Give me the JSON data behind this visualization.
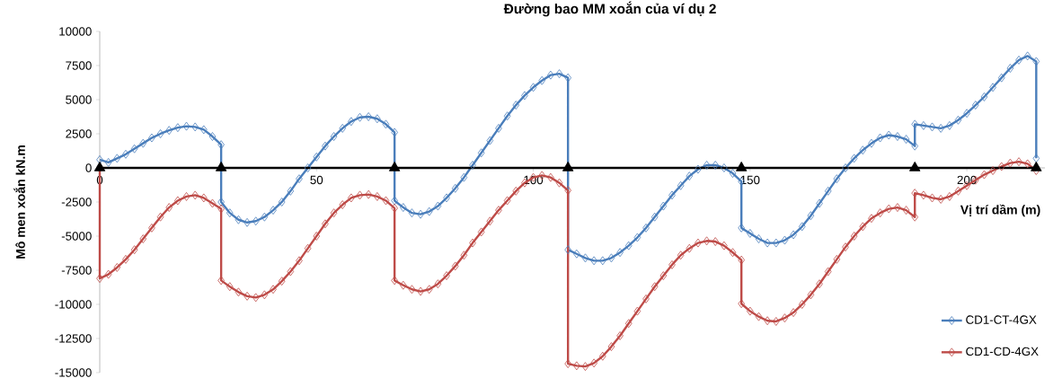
{
  "chart_data": {
    "type": "line",
    "title": "Đường bao MM xoắn của ví dụ 2",
    "xlabel": "Vị trí dầm (m)",
    "ylabel": "Mô men xoắn kN.m",
    "xlim": [
      0,
      218
    ],
    "xticks": [
      0,
      50,
      100,
      150,
      200
    ],
    "ylim": [
      -15000,
      10000
    ],
    "yticks": [
      -15000,
      -12500,
      -10000,
      -7500,
      -5000,
      -2500,
      0,
      2500,
      5000,
      7500,
      10000
    ],
    "legend": "bottom right",
    "line_style": "solid",
    "series": [
      {
        "name": "CD1-CT-4GX",
        "color": "#4a7ebb",
        "marker": "diamond",
        "x": [
          0,
          2,
          4,
          6,
          8,
          10,
          12,
          14,
          16,
          18,
          20,
          22,
          24,
          26,
          28,
          28,
          30,
          32,
          34,
          36,
          38,
          40,
          42,
          44,
          46,
          48,
          50,
          52,
          54,
          56,
          58,
          60,
          62,
          64,
          66,
          68,
          68,
          70,
          72,
          74,
          76,
          78,
          80,
          82,
          84,
          86,
          88,
          90,
          92,
          94,
          96,
          98,
          100,
          102,
          104,
          106,
          108,
          108,
          110,
          112,
          114,
          116,
          118,
          120,
          122,
          124,
          126,
          128,
          130,
          132,
          134,
          136,
          138,
          140,
          142,
          144,
          146,
          148,
          148,
          150,
          152,
          154,
          156,
          158,
          160,
          162,
          164,
          166,
          168,
          170,
          172,
          174,
          176,
          178,
          180,
          182,
          184,
          186,
          188,
          188,
          190,
          192,
          194,
          196,
          198,
          200,
          202,
          204,
          206,
          208,
          210,
          212,
          214,
          216,
          216
        ],
        "values": [
          600,
          400,
          700,
          1000,
          1400,
          1800,
          2200,
          2500,
          2750,
          2950,
          3050,
          3000,
          2800,
          2300,
          1700,
          -2500,
          -3300,
          -3800,
          -4000,
          -3900,
          -3600,
          -3100,
          -2500,
          -1700,
          -800,
          0,
          800,
          1600,
          2300,
          2900,
          3400,
          3700,
          3750,
          3600,
          3200,
          2600,
          -2400,
          -2900,
          -3300,
          -3400,
          -3200,
          -2800,
          -2200,
          -1500,
          -700,
          200,
          1100,
          2000,
          2900,
          3800,
          4600,
          5300,
          5900,
          6400,
          6800,
          6900,
          6600,
          -6000,
          -6300,
          -6600,
          -6800,
          -6800,
          -6600,
          -6200,
          -5700,
          -5100,
          -4400,
          -3600,
          -2800,
          -2000,
          -1300,
          -600,
          -100,
          200,
          200,
          0,
          -400,
          -1000,
          -4400,
          -4800,
          -5200,
          -5500,
          -5500,
          -5300,
          -4900,
          -4300,
          -3500,
          -2600,
          -1700,
          -800,
          0,
          700,
          1300,
          1800,
          2200,
          2400,
          2300,
          2100,
          1600,
          3200,
          3100,
          3000,
          2900,
          3100,
          3500,
          4000,
          4600,
          5200,
          5900,
          6600,
          7300,
          7900,
          8200,
          7800,
          700
        ]
      },
      {
        "name": "CD1-CD-4GX",
        "color": "#be4b48",
        "marker": "diamond",
        "x": [
          0,
          0,
          2,
          4,
          6,
          8,
          10,
          12,
          14,
          16,
          18,
          20,
          22,
          24,
          26,
          28,
          28,
          30,
          32,
          34,
          36,
          38,
          40,
          42,
          44,
          46,
          48,
          50,
          52,
          54,
          56,
          58,
          60,
          62,
          64,
          66,
          68,
          68,
          70,
          72,
          74,
          76,
          78,
          80,
          82,
          84,
          86,
          88,
          90,
          92,
          94,
          96,
          98,
          100,
          102,
          104,
          106,
          108,
          108,
          110,
          112,
          114,
          116,
          118,
          120,
          122,
          124,
          126,
          128,
          130,
          132,
          134,
          136,
          138,
          140,
          142,
          144,
          146,
          148,
          148,
          150,
          152,
          154,
          156,
          158,
          160,
          162,
          164,
          166,
          168,
          170,
          172,
          174,
          176,
          178,
          180,
          182,
          184,
          186,
          188,
          188,
          190,
          192,
          194,
          196,
          198,
          200,
          202,
          204,
          206,
          208,
          210,
          212,
          214,
          216
        ],
        "values": [
          0,
          -8100,
          -7800,
          -7300,
          -6700,
          -6000,
          -5200,
          -4400,
          -3600,
          -2900,
          -2400,
          -2100,
          -2000,
          -2200,
          -2600,
          -3000,
          -8250,
          -8700,
          -9100,
          -9400,
          -9500,
          -9300,
          -8900,
          -8300,
          -7600,
          -6800,
          -5900,
          -5000,
          -4100,
          -3300,
          -2700,
          -2200,
          -2000,
          -1950,
          -2100,
          -2400,
          -2950,
          -8250,
          -8600,
          -8900,
          -9050,
          -8900,
          -8500,
          -7900,
          -7200,
          -6400,
          -5500,
          -4700,
          -3900,
          -3100,
          -2400,
          -1700,
          -1100,
          -700,
          -550,
          -700,
          -1100,
          -1650,
          -14350,
          -14500,
          -14550,
          -14300,
          -13800,
          -13100,
          -12300,
          -11400,
          -10500,
          -9600,
          -8700,
          -7900,
          -7100,
          -6400,
          -5900,
          -5500,
          -5350,
          -5400,
          -5700,
          -6200,
          -6750,
          -9950,
          -10500,
          -10900,
          -11200,
          -11250,
          -11000,
          -10600,
          -10000,
          -9300,
          -8500,
          -7600,
          -6700,
          -5800,
          -5000,
          -4300,
          -3700,
          -3300,
          -3000,
          -2900,
          -3100,
          -3600,
          -1850,
          -2000,
          -2200,
          -2300,
          -2100,
          -1700,
          -1300,
          -900,
          -500,
          -200,
          100,
          350,
          450,
          300,
          -200
        ]
      },
      {
        "color": "#000000",
        "marker": "triangle",
        "x": [
          0,
          28,
          68,
          108,
          148,
          188,
          216
        ],
        "values": [
          0,
          0,
          0,
          0,
          0,
          0,
          0
        ]
      }
    ]
  }
}
